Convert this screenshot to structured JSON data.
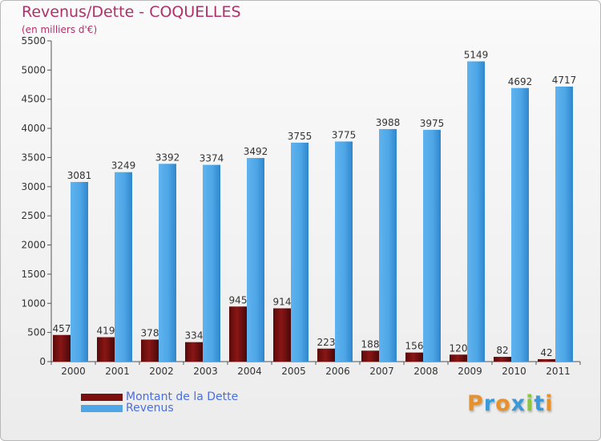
{
  "title": "Revenus/Dette - COQUELLES",
  "subtitle": "(en milliers d'€)",
  "chart_data": {
    "type": "bar",
    "categories": [
      "2000",
      "2001",
      "2002",
      "2003",
      "2004",
      "2005",
      "2006",
      "2007",
      "2008",
      "2009",
      "2010",
      "2011"
    ],
    "series": [
      {
        "name": "Montant de la Dette",
        "color": "#7a1010",
        "values": [
          457,
          419,
          378,
          334,
          945,
          914,
          223,
          188,
          156,
          120,
          82,
          42
        ]
      },
      {
        "name": "Revenus",
        "color": "#4ea6e6",
        "values": [
          3081,
          3249,
          3392,
          3374,
          3492,
          3755,
          3775,
          3988,
          3975,
          5149,
          4692,
          4717
        ]
      }
    ],
    "ylim": [
      0,
      5500
    ],
    "yticks": [
      0,
      500,
      1000,
      1500,
      2000,
      2500,
      3000,
      3500,
      4000,
      4500,
      5000,
      5500
    ],
    "grid": false,
    "legend_position": "bottom-left"
  },
  "logo_text": "Proxiti",
  "logo_colors": [
    "#e8902a",
    "#3a9ad9",
    "#e8902a",
    "#3a9ad9",
    "#8cc63f",
    "#3a9ad9",
    "#e8902a"
  ]
}
